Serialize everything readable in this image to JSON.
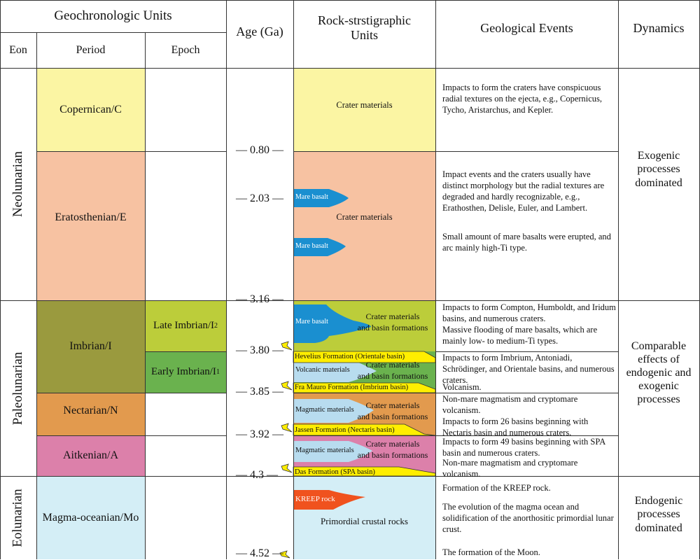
{
  "headers": {
    "geochronologic": "Geochronologic Units",
    "eon": "Eon",
    "period": "Period",
    "epoch": "Epoch",
    "age": "Age (Ga)",
    "rock_line1": "Rock-strstigraphic",
    "rock_line2": "Units",
    "events": "Geological Events",
    "dynamics": "Dynamics"
  },
  "eons": [
    "Neolunarian",
    "Paleolunarian",
    "Eolunarian"
  ],
  "periods": {
    "copernican": "Copernican/C",
    "eratosthenian": "Eratosthenian/E",
    "imbrian": "Imbrian/I",
    "nectarian": "Nectarian/N",
    "aitkenian": "Aitkenian/A",
    "magma": "Magma-oceanian/Mo"
  },
  "epochs": {
    "late": "Late Imbrian/I",
    "late_sub": "2",
    "early": "Early Imbrian/I",
    "early_sub": "1"
  },
  "ages": [
    "0.80",
    "2.03",
    "3.16",
    "3.80",
    "3.85",
    "3.92",
    "4.3",
    "4.52"
  ],
  "rocks": {
    "crater_materials": "Crater materials",
    "mare_basalt": "Mare basalt",
    "crater_basin_1": "Crater materials",
    "crater_basin_2": "and basin formations",
    "volcanic": "Volcanic materials",
    "magmatic": "Magmatic materials",
    "kreep": "KREEP rock",
    "primordial": "Primordial crustal rocks",
    "hevelius": "Hevelius Formation (Orientale basin)",
    "fra_mauro": "Fra Mauro Formation (Imbrium basin)",
    "jassen": "Jassen Formation (Nectaris basin)",
    "das": "Das Formation (SPA basin)"
  },
  "events": {
    "copernican": "Impacts to form the craters have conspicuous radial textures on the ejecta, e.g., Copernicus, Tycho, Aristarchus, and Kepler.",
    "eratosthenian_1": "Impact events and the craters usually have distinct morphology but the radial textures are degraded and hardly recognizable, e.g., Erathosthen, Delisle, Euler, and Lambert.",
    "eratosthenian_2": "Small amount of mare basalts were erupted, and arc mainly high-Ti type.",
    "late_imbrian_1": "Impacts to form Compton, Humboldt, and Iridum basins, and numerous craters.",
    "late_imbrian_2": "Massive flooding of mare basalts, which are mainly low- to medium-Ti types.",
    "early_imbrian_1": "Impacts to form Imbrium, Antoniadi, Schrödinger, and Orientale basins, and numerous craters.",
    "early_imbrian_2": "Volcanism.",
    "nectarian_1": "Non-mare magmatism and cryptomare volcanism.",
    "nectarian_2": "Impacts to form 26 basins beginning with Nectaris basin and numerous craters.",
    "aitkenian_1": "Impacts to form 49 basins beginning with SPA basin and numerous craters.",
    "aitkenian_2": "Non-mare magmatism and cryptomare volcanism.",
    "magma_1": "Formation of the KREEP rock.",
    "magma_2": "The evolution of the magma ocean and solidification of the anorthositic primordial lunar crust.",
    "magma_3": "The formation of the Moon."
  },
  "dynamics": {
    "exogenic": "Exogenic processes dominated",
    "comparable": "Comparable effects of endogenic and exogenic processes",
    "endogenic": "Endogenic processes dominated"
  },
  "colors": {
    "copernican": "#fbf5a3",
    "eratosthenian": "#f7c2a2",
    "imbrian": "#9a9a3e",
    "late_imbrian": "#bccd3a",
    "early_imbrian": "#6ab24e",
    "nectarian": "#e29a4e",
    "aitkenian": "#dc80aa",
    "magma": "#d4eef6",
    "mare_basalt": "#1a8fd0",
    "kreep": "#f0521e",
    "formation_yellow": "#ffee00",
    "light_blue": "#b8dcef"
  }
}
